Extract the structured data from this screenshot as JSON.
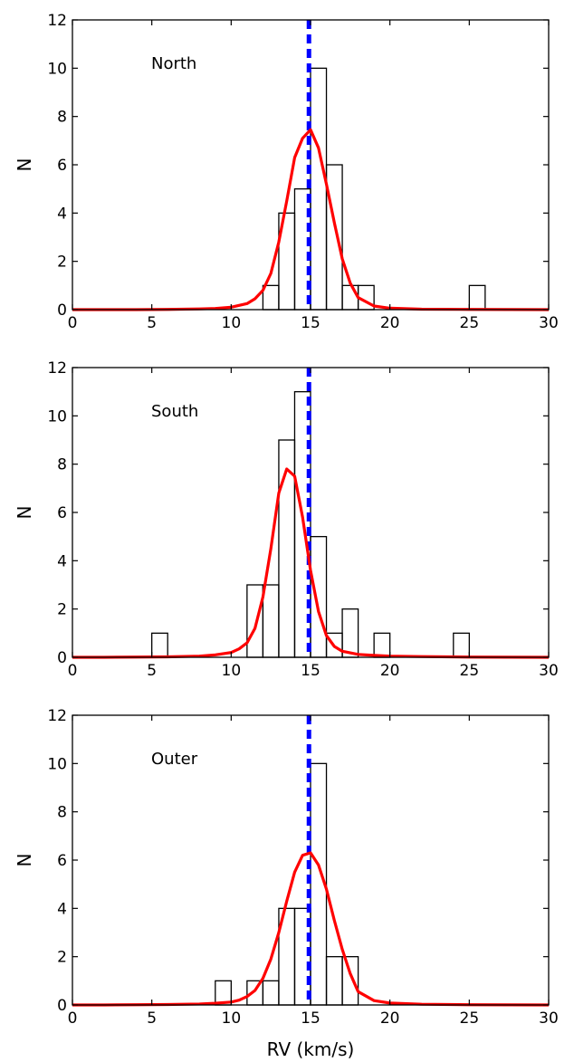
{
  "chart_data": [
    {
      "type": "bar",
      "label": "North",
      "xlabel": "",
      "ylabel": "N",
      "xlim": [
        0,
        30
      ],
      "ylim": [
        0,
        12
      ],
      "xticks": [
        0,
        5,
        10,
        15,
        20,
        25,
        30
      ],
      "yticks": [
        0,
        2,
        4,
        6,
        8,
        10,
        12
      ],
      "bin_width": 1,
      "histogram": [
        {
          "x": 12,
          "count": 1
        },
        {
          "x": 13,
          "count": 4
        },
        {
          "x": 14,
          "count": 5
        },
        {
          "x": 15,
          "count": 10
        },
        {
          "x": 16,
          "count": 6
        },
        {
          "x": 17,
          "count": 1
        },
        {
          "x": 18,
          "count": 1
        },
        {
          "x": 25,
          "count": 1
        }
      ],
      "fit_curve": {
        "color": "#ff0000",
        "x": [
          0,
          2,
          4,
          6,
          8,
          9,
          10,
          11,
          11.5,
          12,
          12.5,
          13,
          13.5,
          14,
          14.5,
          15,
          15.5,
          16,
          16.5,
          17,
          17.5,
          18,
          19,
          20,
          22,
          25,
          30
        ],
        "y": [
          0,
          0,
          0,
          0.01,
          0.03,
          0.05,
          0.1,
          0.25,
          0.45,
          0.8,
          1.5,
          2.8,
          4.5,
          6.3,
          7.1,
          7.45,
          6.7,
          5.2,
          3.6,
          2.1,
          1.1,
          0.5,
          0.15,
          0.06,
          0.02,
          0.01,
          0
        ]
      },
      "reference_line": {
        "x": 14.9,
        "color": "#0000ff"
      }
    },
    {
      "type": "bar",
      "label": "South",
      "xlabel": "",
      "ylabel": "N",
      "xlim": [
        0,
        30
      ],
      "ylim": [
        0,
        12
      ],
      "xticks": [
        0,
        5,
        10,
        15,
        20,
        25,
        30
      ],
      "yticks": [
        0,
        2,
        4,
        6,
        8,
        10,
        12
      ],
      "bin_width": 1,
      "histogram": [
        {
          "x": 5,
          "count": 1
        },
        {
          "x": 11,
          "count": 3
        },
        {
          "x": 12,
          "count": 3
        },
        {
          "x": 13,
          "count": 9
        },
        {
          "x": 14,
          "count": 11
        },
        {
          "x": 15,
          "count": 5
        },
        {
          "x": 16,
          "count": 1
        },
        {
          "x": 17,
          "count": 2
        },
        {
          "x": 19,
          "count": 1
        },
        {
          "x": 24,
          "count": 1
        }
      ],
      "fit_curve": {
        "color": "#ff0000",
        "x": [
          0,
          2,
          4,
          6,
          8,
          9,
          10,
          10.5,
          11,
          11.5,
          12,
          12.5,
          13,
          13.5,
          14,
          14.5,
          15,
          15.5,
          16,
          16.5,
          17,
          18,
          19,
          20,
          22,
          25,
          30
        ],
        "y": [
          0,
          0,
          0.01,
          0.02,
          0.05,
          0.1,
          0.2,
          0.35,
          0.6,
          1.2,
          2.5,
          4.5,
          6.8,
          7.8,
          7.5,
          5.8,
          3.6,
          1.9,
          0.9,
          0.45,
          0.25,
          0.12,
          0.08,
          0.05,
          0.03,
          0.01,
          0
        ]
      },
      "reference_line": {
        "x": 14.9,
        "color": "#0000ff"
      }
    },
    {
      "type": "bar",
      "label": "Outer",
      "xlabel": "RV (km/s)",
      "ylabel": "N",
      "xlim": [
        0,
        30
      ],
      "ylim": [
        0,
        12
      ],
      "xticks": [
        0,
        5,
        10,
        15,
        20,
        25,
        30
      ],
      "yticks": [
        0,
        2,
        4,
        6,
        8,
        10,
        12
      ],
      "bin_width": 1,
      "histogram": [
        {
          "x": 9,
          "count": 1
        },
        {
          "x": 11,
          "count": 1
        },
        {
          "x": 12,
          "count": 1
        },
        {
          "x": 13,
          "count": 4
        },
        {
          "x": 14,
          "count": 4
        },
        {
          "x": 15,
          "count": 10
        },
        {
          "x": 16,
          "count": 2
        },
        {
          "x": 17,
          "count": 2
        }
      ],
      "fit_curve": {
        "color": "#ff0000",
        "x": [
          0,
          2,
          4,
          6,
          8,
          9,
          10,
          10.5,
          11,
          11.5,
          12,
          12.5,
          13,
          13.5,
          14,
          14.5,
          15,
          15.5,
          16,
          16.5,
          17,
          17.5,
          18,
          19,
          20,
          22,
          25,
          30
        ],
        "y": [
          0,
          0,
          0.01,
          0.02,
          0.04,
          0.07,
          0.12,
          0.2,
          0.35,
          0.6,
          1.1,
          1.9,
          3.0,
          4.3,
          5.5,
          6.2,
          6.3,
          5.8,
          4.8,
          3.5,
          2.3,
          1.3,
          0.55,
          0.18,
          0.08,
          0.03,
          0.01,
          0
        ]
      },
      "reference_line": {
        "x": 14.9,
        "color": "#0000ff"
      }
    }
  ]
}
